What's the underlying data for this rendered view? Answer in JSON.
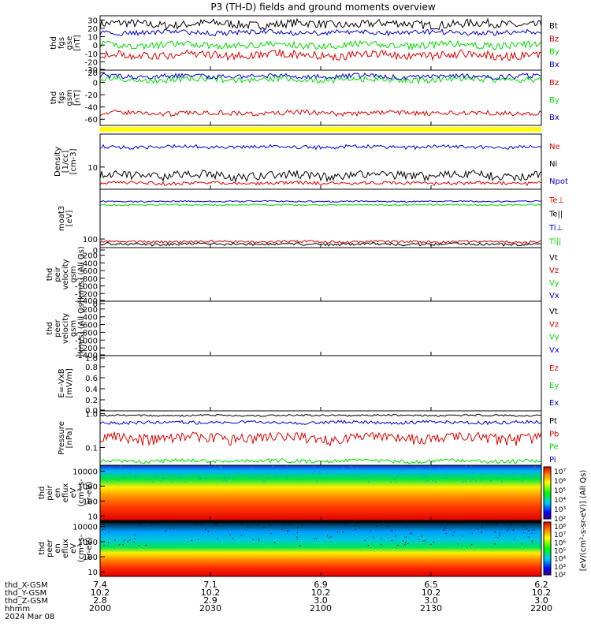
{
  "title": "P3 (TH-D) fields and ground moments overview",
  "colors": {
    "black": "#000000",
    "red": "#e00000",
    "blue": "#0000d0",
    "green": "#00dd00",
    "yellow": "#ffff00"
  },
  "x_axis": {
    "range": [
      0,
      120
    ],
    "ticks": [
      0,
      30,
      60,
      90,
      120
    ],
    "rows": [
      {
        "label": "thd_X-GSM",
        "values": [
          "7.4",
          "7.1",
          "6.9",
          "6.5",
          "6.2"
        ]
      },
      {
        "label": "thd_Y-GSM",
        "values": [
          "10.2",
          "10.2",
          "10.2",
          "10.2",
          "10.2"
        ]
      },
      {
        "label": "thd_Z-GSM",
        "values": [
          "2.8",
          "2.9",
          "3.0",
          "3.0",
          "3.0"
        ]
      },
      {
        "label": "hhmm",
        "values": [
          "2000",
          "2030",
          "2100",
          "2130",
          "2200"
        ]
      }
    ],
    "date": "2024 Mar 08"
  },
  "colorbars": [
    {
      "ticks": [
        "10⁷",
        "10⁶",
        "10⁵",
        "10⁴",
        "10³",
        "10²"
      ],
      "label": "[eV/(cm²-s-sr-eV)] (All Qs)"
    },
    {
      "ticks": [
        "10⁸",
        "10⁷",
        "10⁶",
        "10⁵",
        "10⁴",
        "10³",
        "10²"
      ],
      "label": "[eV/(cm²-s-sr-eV)] (All Qs)"
    }
  ],
  "chart_data": [
    {
      "id": "fgs_gse",
      "type": "line",
      "ylabel": [
        "thd",
        "fgs",
        "gse",
        "[nT]"
      ],
      "ylim": [
        -30,
        35
      ],
      "yticks": [
        "30",
        "20",
        "10",
        "0",
        "-10",
        "-20",
        "-30"
      ],
      "series": [
        {
          "name": "Bt",
          "color": "black",
          "base": 25,
          "amp": 5
        },
        {
          "name": "Bz",
          "color": "red",
          "base": -12,
          "amp": 5
        },
        {
          "name": "By",
          "color": "green",
          "base": 0,
          "amp": 4
        },
        {
          "name": "Bx",
          "color": "blue",
          "base": 15,
          "amp": 3
        }
      ]
    },
    {
      "id": "fgs_gsm",
      "type": "line",
      "ylabel": [
        "thd",
        "fgs",
        "gsm",
        "[nT]"
      ],
      "ylim": [
        -70,
        20
      ],
      "yticks": [
        "20",
        "0",
        "-20",
        "-40",
        "-60"
      ],
      "series": [
        {
          "name": "Bz",
          "color": "red",
          "base": -50,
          "amp": 4
        },
        {
          "name": "By",
          "color": "green",
          "base": 5,
          "amp": 5
        },
        {
          "name": "Bx",
          "color": "blue",
          "base": 10,
          "amp": 4
        }
      ]
    },
    {
      "id": "yellow_bar",
      "type": "area",
      "color": "yellow"
    },
    {
      "id": "density",
      "type": "line",
      "scale": "log",
      "ylabel": [
        "Density",
        "[1/cc]",
        "[cm-3]"
      ],
      "ylim": [
        3,
        60
      ],
      "yticks": [
        "10"
      ],
      "series": [
        {
          "name": "Ne",
          "color": "red",
          "base": 4.2,
          "amp": 0.4
        },
        {
          "name": "Ni",
          "color": "black",
          "base": 6.5,
          "amp": 1.5
        },
        {
          "name": "Npot",
          "color": "blue",
          "base": 30,
          "amp": 3
        }
      ]
    },
    {
      "id": "temperature",
      "type": "line",
      "scale": "log",
      "ylabel": [
        "moat3",
        "[eV]"
      ],
      "ylim": [
        40,
        20000
      ],
      "yticks": [
        "100"
      ],
      "series": [
        {
          "name": "Te⊥",
          "color": "red",
          "base": 75,
          "amp": 10
        },
        {
          "name": "Te||",
          "color": "black",
          "base": 58,
          "amp": 8
        },
        {
          "name": "Ti⊥",
          "color": "blue",
          "base": 5500,
          "amp": 400
        },
        {
          "name": "Ti||",
          "color": "green",
          "base": 3800,
          "amp": 300
        }
      ]
    },
    {
      "id": "peir_velocity",
      "type": "line",
      "ylabel": [
        "thd",
        "peir",
        "velocity",
        "gsm",
        "[km/s] (All Qs)"
      ],
      "ylim": [
        -1400,
        0
      ],
      "yticks": [
        "0",
        "-200",
        "-400",
        "-600",
        "-800",
        "-1000",
        "-1200",
        "-1400"
      ],
      "series": [
        {
          "name": "Vt",
          "color": "black"
        },
        {
          "name": "Vz",
          "color": "red"
        },
        {
          "name": "Vy",
          "color": "green"
        },
        {
          "name": "Vx",
          "color": "blue"
        }
      ]
    },
    {
      "id": "peer_velocity",
      "type": "line",
      "ylabel": [
        "thd",
        "peer",
        "velocity",
        "gsm",
        "[km/s] (All Qs)"
      ],
      "ylim": [
        -1400,
        0
      ],
      "yticks": [
        "0",
        "-200",
        "-400",
        "-600",
        "-800",
        "-1000",
        "-1200",
        "-1400"
      ],
      "series": [
        {
          "name": "Vt",
          "color": "black"
        },
        {
          "name": "Vz",
          "color": "red"
        },
        {
          "name": "Vy",
          "color": "green"
        },
        {
          "name": "Vx",
          "color": "blue"
        }
      ]
    },
    {
      "id": "efield",
      "type": "line",
      "ylabel": [
        "E=-VxB",
        "[mV/m]"
      ],
      "ylim": [
        0,
        1
      ],
      "yticks": [
        "1.0",
        "0.8",
        "0.6",
        "0.4",
        "0.2",
        "0.0"
      ],
      "series": [
        {
          "name": "Ez",
          "color": "red"
        },
        {
          "name": "Ey",
          "color": "green"
        },
        {
          "name": "Ex",
          "color": "blue"
        }
      ]
    },
    {
      "id": "pressure",
      "type": "line",
      "scale": "log",
      "ylabel": [
        "Pressure",
        "[nPa]"
      ],
      "ylim": [
        0.03,
        1.2
      ],
      "yticks": [
        "1.0",
        "0.1"
      ],
      "series": [
        {
          "name": "Pt",
          "color": "black",
          "base": 0.88,
          "amp": 0.05
        },
        {
          "name": "Pb",
          "color": "red",
          "base": 0.2,
          "amp": 0.07
        },
        {
          "name": "Pe",
          "color": "green",
          "base": 0.04,
          "amp": 0.005
        },
        {
          "name": "Pi",
          "color": "blue",
          "base": 0.55,
          "amp": 0.06
        }
      ]
    },
    {
      "id": "peir_spectrogram",
      "type": "heatmap",
      "scale": "log",
      "ylabel": [
        "thd",
        "peir",
        "en",
        "eflux",
        "eV",
        "(cm²-s-",
        "sr-eV)"
      ],
      "ylim": [
        5,
        25000
      ],
      "yticks": [
        "10000",
        "1000",
        "100",
        "10"
      ]
    },
    {
      "id": "peer_spectrogram",
      "type": "heatmap",
      "scale": "log",
      "ylabel": [
        "thd",
        "peer",
        "en",
        "eflux",
        "eV",
        "(cm²-s-",
        "sr-eV)"
      ],
      "ylim": [
        5,
        25000
      ],
      "yticks": [
        "10000",
        "1000",
        "100",
        "10"
      ]
    }
  ]
}
